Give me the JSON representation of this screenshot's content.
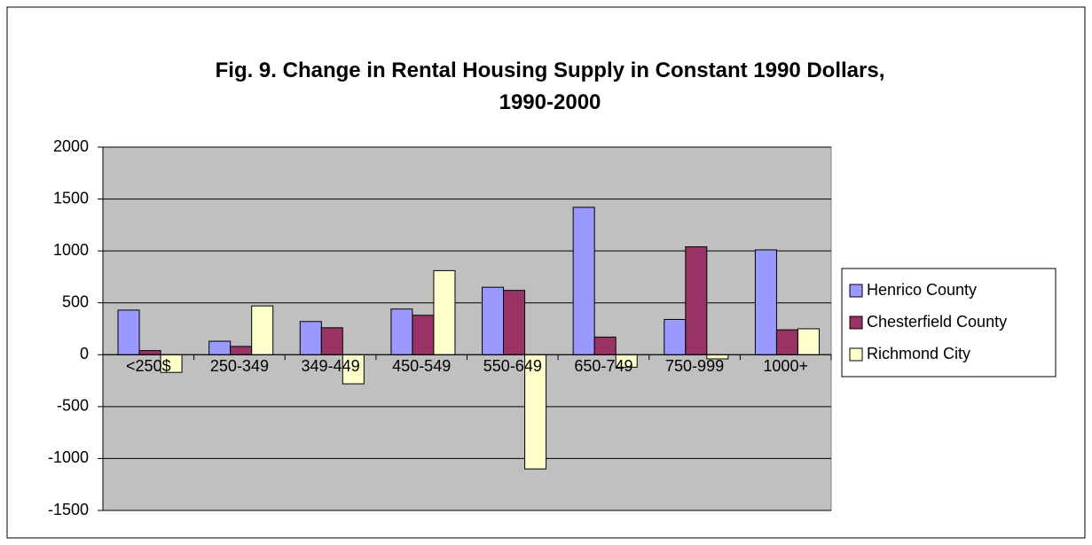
{
  "chart_data": {
    "type": "bar",
    "title": "Fig. 9. Change in Rental Housing Supply in Constant 1990 Dollars, 1990-2000",
    "categories": [
      "<250$",
      "250-349",
      "349-449",
      "450-549",
      "550-649",
      "650-749",
      "750-999",
      "1000+"
    ],
    "series": [
      {
        "name": "Henrico County",
        "color": "#9999ff",
        "values": [
          430,
          130,
          320,
          440,
          650,
          1420,
          340,
          1010
        ]
      },
      {
        "name": "Chesterfield County",
        "color": "#993366",
        "values": [
          40,
          80,
          260,
          380,
          620,
          170,
          1040,
          240
        ]
      },
      {
        "name": "Richmond City",
        "color": "#ffffcc",
        "values": [
          -170,
          470,
          -280,
          810,
          -1100,
          -120,
          -40,
          250
        ]
      }
    ],
    "ylim": [
      -1500,
      2000
    ],
    "yticks": [
      -1500,
      -1000,
      -500,
      0,
      500,
      1000,
      1500,
      2000
    ],
    "grid": true,
    "legend": "right"
  }
}
